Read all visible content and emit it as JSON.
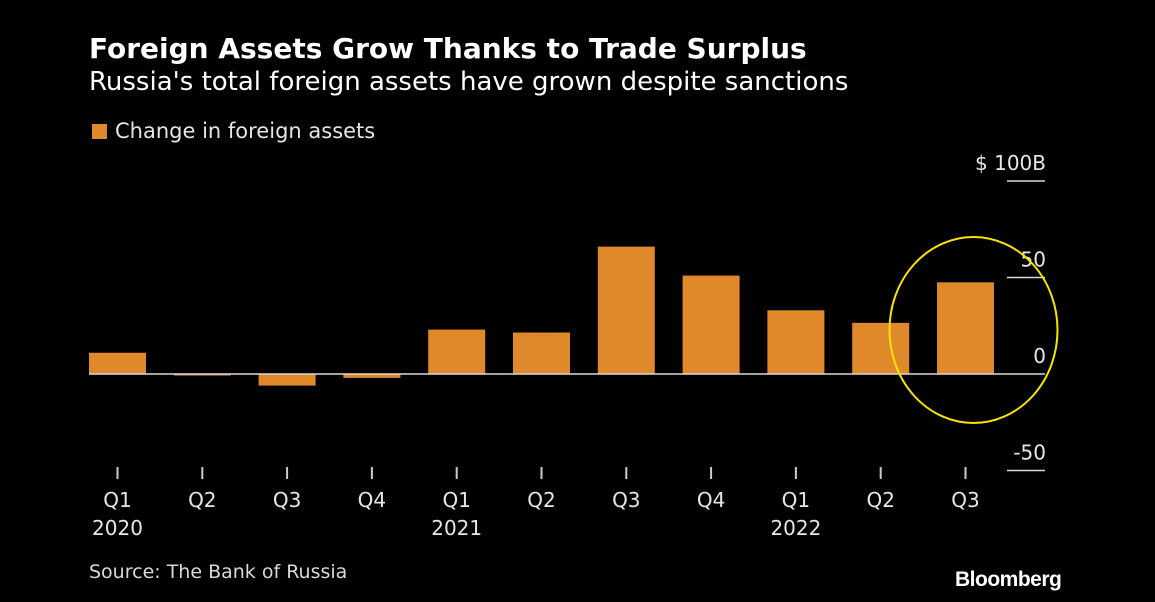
{
  "header": {
    "title": "Foreign Assets Grow Thanks to Trade Surplus",
    "subtitle": "Russia's total foreign assets have grown despite sanctions"
  },
  "legend": {
    "label": "Change in foreign assets"
  },
  "footer": {
    "source": "Source: The Bank of Russia",
    "brand": "Bloomberg"
  },
  "colors": {
    "bar": "#e0892a",
    "highlight_circle": "#f5e400",
    "zero_line": "#d9d9d9"
  },
  "chart_data": {
    "type": "bar",
    "title": "Foreign Assets Grow Thanks to Trade Surplus",
    "subtitle": "Russia's total foreign assets have grown despite sanctions",
    "categories": [
      "Q1",
      "Q2",
      "Q3",
      "Q4",
      "Q1",
      "Q2",
      "Q3",
      "Q4",
      "Q1",
      "Q2",
      "Q3"
    ],
    "year_labels": [
      "2020",
      "",
      "",
      "",
      "2021",
      "",
      "",
      "",
      "2022",
      "",
      ""
    ],
    "series": [
      {
        "name": "Change in foreign assets",
        "values": [
          11,
          -0.5,
          -6,
          -2,
          23,
          21.5,
          66,
          51,
          33,
          26.5,
          47.5
        ]
      }
    ],
    "yticks": [
      {
        "value": 100,
        "label": "$ 100B"
      },
      {
        "value": 50,
        "label": "50"
      },
      {
        "value": 0,
        "label": "0"
      },
      {
        "value": -50,
        "label": "-50"
      }
    ],
    "ylim": [
      -50,
      100
    ],
    "y_axis_position": "right",
    "grid": false,
    "legend_position": "top-left",
    "highlight": {
      "category_index": 10,
      "shape": "circle"
    }
  }
}
